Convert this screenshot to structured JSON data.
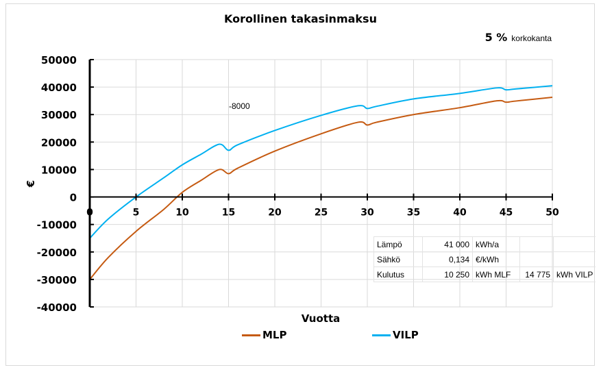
{
  "chart_data": {
    "type": "line",
    "title": "Korollinen takasinmaksu",
    "subtitle": {
      "value": "5 %",
      "label": "korkokanta"
    },
    "xlabel": "Vuotta",
    "ylabel": "€",
    "xlim": [
      0,
      50
    ],
    "ylim": [
      -40000,
      50000
    ],
    "x_ticks": [
      0,
      5,
      10,
      15,
      20,
      25,
      30,
      35,
      40,
      45,
      50
    ],
    "y_ticks": [
      50000,
      40000,
      30000,
      20000,
      10000,
      0,
      -10000,
      -20000,
      -30000,
      -40000
    ],
    "grid": true,
    "legend_position": "bottom",
    "annotation": "-8000",
    "series": [
      {
        "name": "MLP",
        "color": "#c55a11",
        "x": [
          0,
          2,
          5,
          8,
          10,
          12,
          14,
          15,
          16,
          20,
          25,
          29,
          30,
          31,
          35,
          40,
          44,
          45,
          46,
          50
        ],
        "values": [
          -30000,
          -22000,
          -12500,
          -4500,
          1700,
          6000,
          10000,
          8500,
          10500,
          16700,
          23000,
          27200,
          26200,
          27200,
          30000,
          32500,
          35000,
          34500,
          34900,
          36300
        ]
      },
      {
        "name": "VILP",
        "color": "#00b0f0",
        "x": [
          0,
          2,
          5,
          8,
          10,
          12,
          14,
          15,
          16,
          20,
          25,
          29,
          30,
          31,
          35,
          40,
          44,
          45,
          46,
          50
        ],
        "values": [
          -15000,
          -8000,
          0,
          7000,
          11700,
          15500,
          19200,
          17000,
          19000,
          24200,
          29700,
          33200,
          32200,
          33000,
          35700,
          37700,
          39700,
          39000,
          39300,
          40500
        ]
      }
    ]
  },
  "info_table": {
    "rows": [
      {
        "label": "Lämpö",
        "value": "41 000",
        "unit": "kWh/a",
        "value2": "",
        "unit2": ""
      },
      {
        "label": "Sähkö",
        "value": "0,134",
        "unit": "€/kWh",
        "value2": "",
        "unit2": ""
      },
      {
        "label": "Kulutus",
        "value": "10 250",
        "unit": "kWh MLF",
        "value2": "14 775",
        "unit2": "kWh VILP"
      }
    ]
  }
}
